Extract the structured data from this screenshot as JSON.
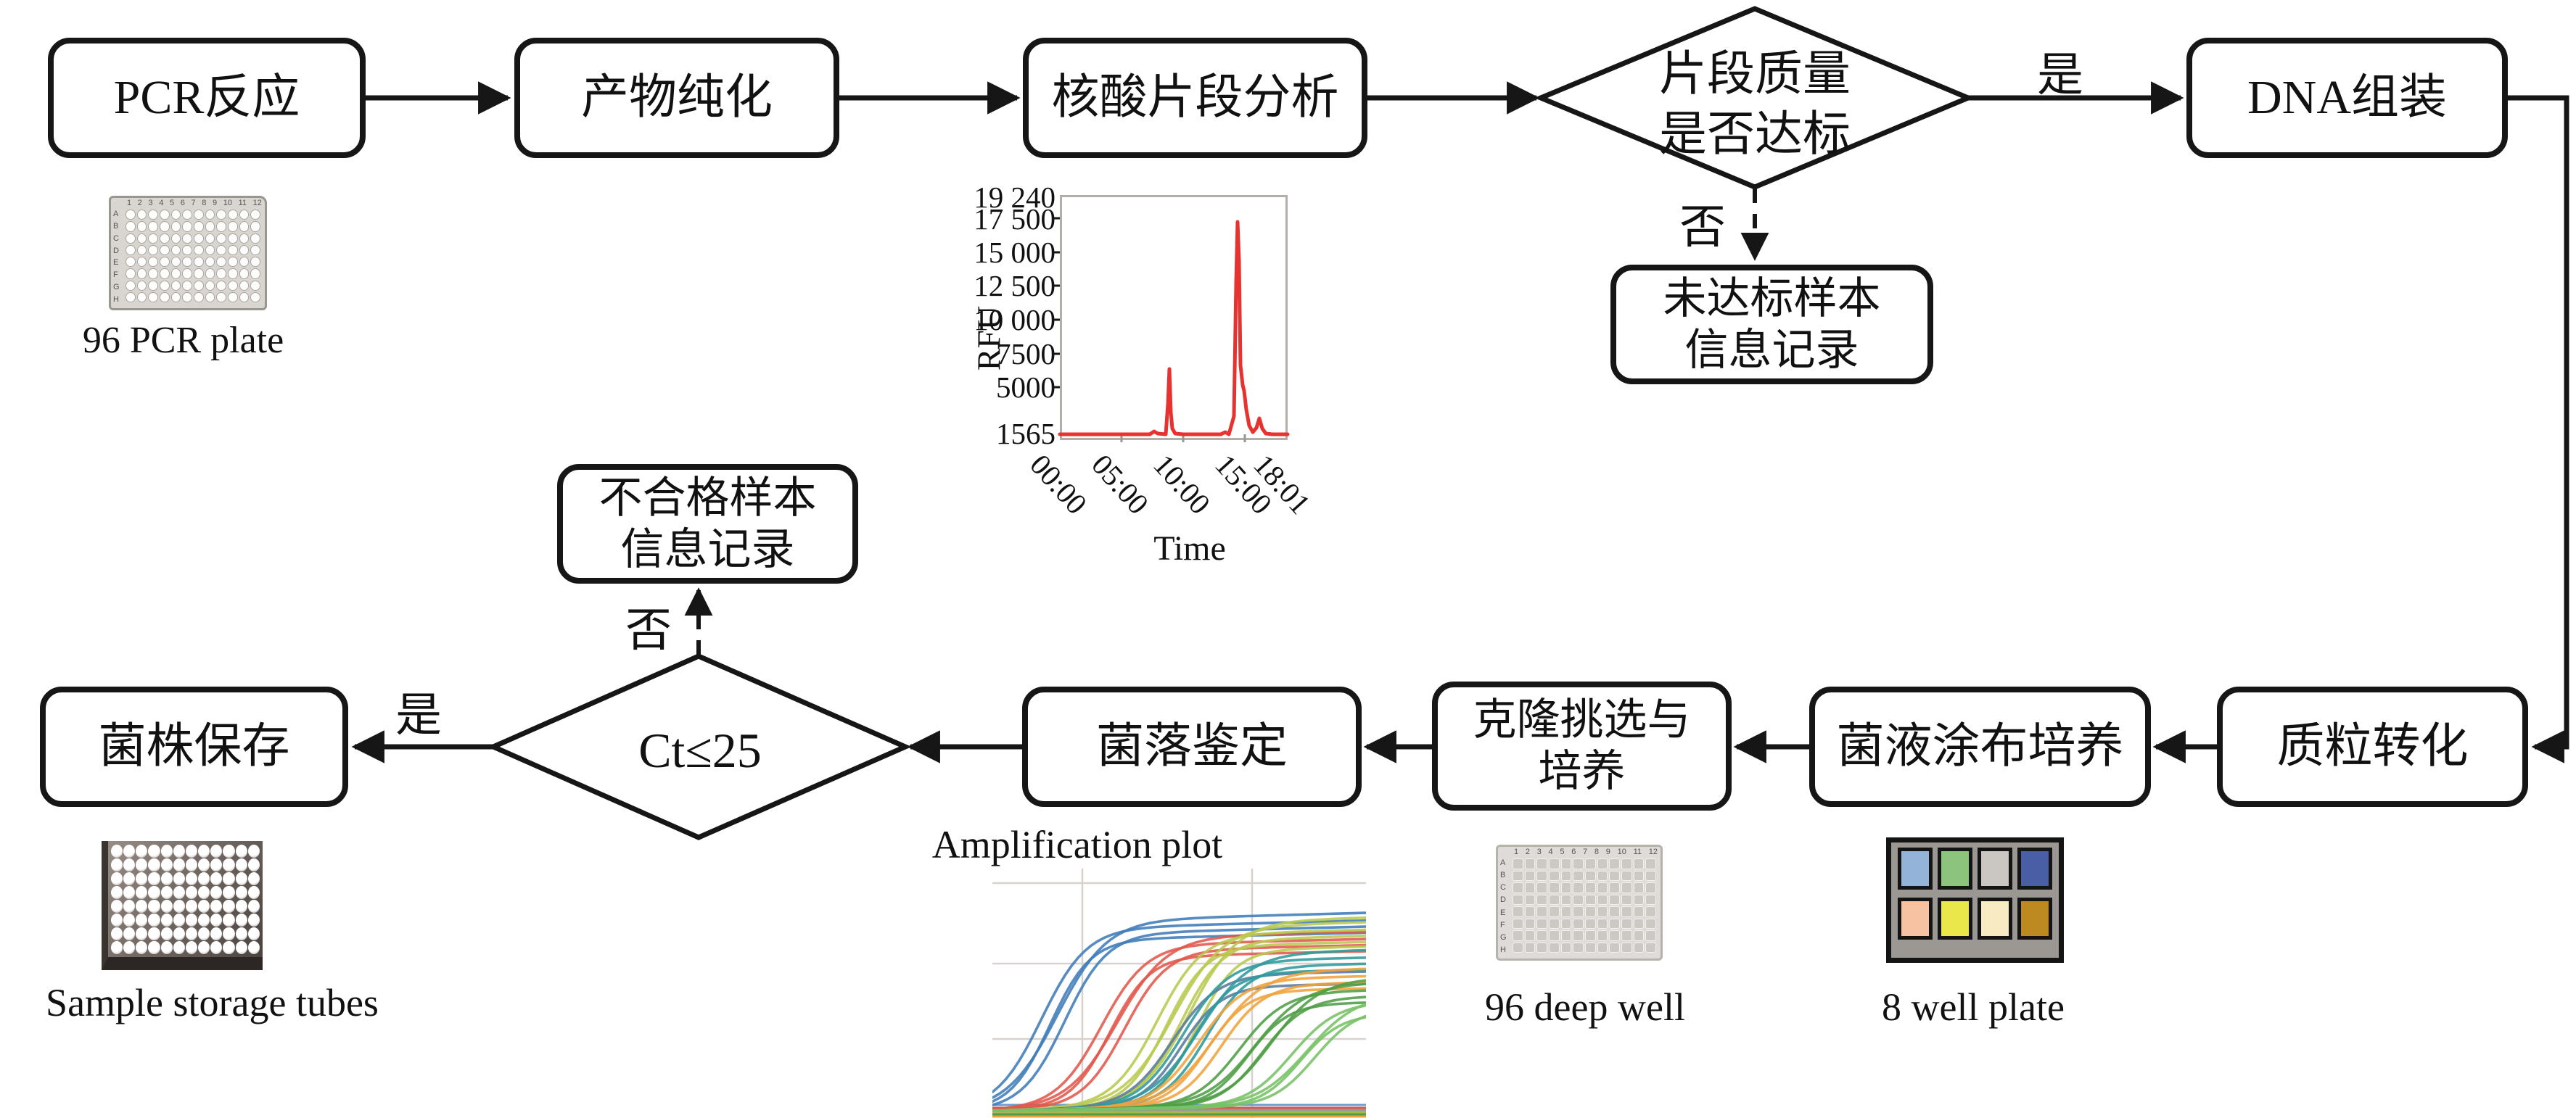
{
  "flow": {
    "nodes": {
      "pcr": {
        "label": "PCR反应"
      },
      "purify": {
        "label": "产物纯化"
      },
      "fragment_analysis": {
        "label": "核酸片段分析"
      },
      "quality_decision": {
        "line1": "片段质量",
        "line2": "是否达标"
      },
      "dna_assembly": {
        "label": "DNA组装"
      },
      "substandard_record": {
        "line1": "未达标样本",
        "line2": "信息记录"
      },
      "plasmid_transform": {
        "label": "质粒转化"
      },
      "spread_culture": {
        "label": "菌液涂布培养"
      },
      "clone_pick": {
        "line1": "克隆挑选与",
        "line2": "培养"
      },
      "colony_id": {
        "label": "菌落鉴定"
      },
      "ct_decision": {
        "label": "Ct≤25"
      },
      "strain_storage": {
        "label": "菌株保存"
      },
      "fail_record": {
        "line1": "不合格样本",
        "line2": "信息记录"
      }
    },
    "edge_labels": {
      "yes_top": "是",
      "no_top": "否",
      "yes_bottom": "是",
      "no_bottom": "否"
    }
  },
  "captions": {
    "pcr_plate": "96 PCR plate",
    "storage_tubes": "Sample storage tubes",
    "deep_well": "96 deep well",
    "well_plate": "8 well plate"
  },
  "plates": {
    "columns": [
      "1",
      "2",
      "3",
      "4",
      "5",
      "6",
      "7",
      "8",
      "9",
      "10",
      "11",
      "12"
    ],
    "rows": [
      "A",
      "B",
      "C",
      "D",
      "E",
      "F",
      "G",
      "H"
    ],
    "well_plate_colors": [
      [
        "#93b3d8",
        "#8cc47e",
        "#cac6c2",
        "#4a5ea6"
      ],
      [
        "#f6c2a2",
        "#eae74a",
        "#f8ebc4",
        "#bc8a20"
      ]
    ]
  },
  "chart_data": [
    {
      "type": "line",
      "name": "fragment-analyzer-electropherogram",
      "ylabel": "RFU",
      "xlabel": "Time",
      "y_ticks_display": [
        "19 240",
        "17 500",
        "15 000",
        "12 500",
        "10 000",
        "7500",
        "5000",
        "1565"
      ],
      "y_ticks_values": [
        19240,
        17500,
        15000,
        12500,
        10000,
        7500,
        5000,
        1565
      ],
      "x_ticks": [
        "00:00",
        "05:00",
        "10:00",
        "15:00",
        "18:01"
      ],
      "ylim": [
        1565,
        19240
      ],
      "line_color": "#e8322f",
      "points": [
        [
          "00:00",
          1565
        ],
        [
          "05:00",
          1565
        ],
        [
          "08:30",
          1700
        ],
        [
          "08:50",
          6400
        ],
        [
          "09:10",
          1700
        ],
        [
          "13:50",
          1900
        ],
        [
          "14:20",
          17300
        ],
        [
          "14:30",
          4800
        ],
        [
          "15:00",
          1800
        ],
        [
          "15:40",
          2750
        ],
        [
          "16:10",
          1700
        ],
        [
          "18:01",
          1600
        ]
      ],
      "grid": false,
      "legend": false
    },
    {
      "type": "line",
      "name": "qpcr-amplification-plot",
      "title": "Amplification plot",
      "grid": true,
      "legend": false,
      "note": "~35 sigmoidal qPCR traces in color groups; axes cropped out of view",
      "groups": [
        {
          "color": "#3f7cb8",
          "count": 4,
          "onset_frac": 0.17,
          "plateau_frac": 0.82
        },
        {
          "color": "#e2574b",
          "count": 4,
          "onset_frac": 0.33,
          "plateau_frac": 0.74
        },
        {
          "color": "#b8c94f",
          "count": 6,
          "onset_frac": 0.48,
          "plateau_frac": 0.78
        },
        {
          "color": "#5a7a9e",
          "count": 2,
          "onset_frac": 0.52,
          "plateau_frac": 0.6
        },
        {
          "color": "#2f9a9d",
          "count": 4,
          "onset_frac": 0.55,
          "plateau_frac": 0.66
        },
        {
          "color": "#f0a33c",
          "count": 4,
          "onset_frac": 0.59,
          "plateau_frac": 0.58
        },
        {
          "color": "#4f9e45",
          "count": 5,
          "onset_frac": 0.7,
          "plateau_frac": 0.52
        },
        {
          "color": "#77c267",
          "count": 4,
          "onset_frac": 0.84,
          "plateau_frac": 0.47
        }
      ]
    }
  ]
}
